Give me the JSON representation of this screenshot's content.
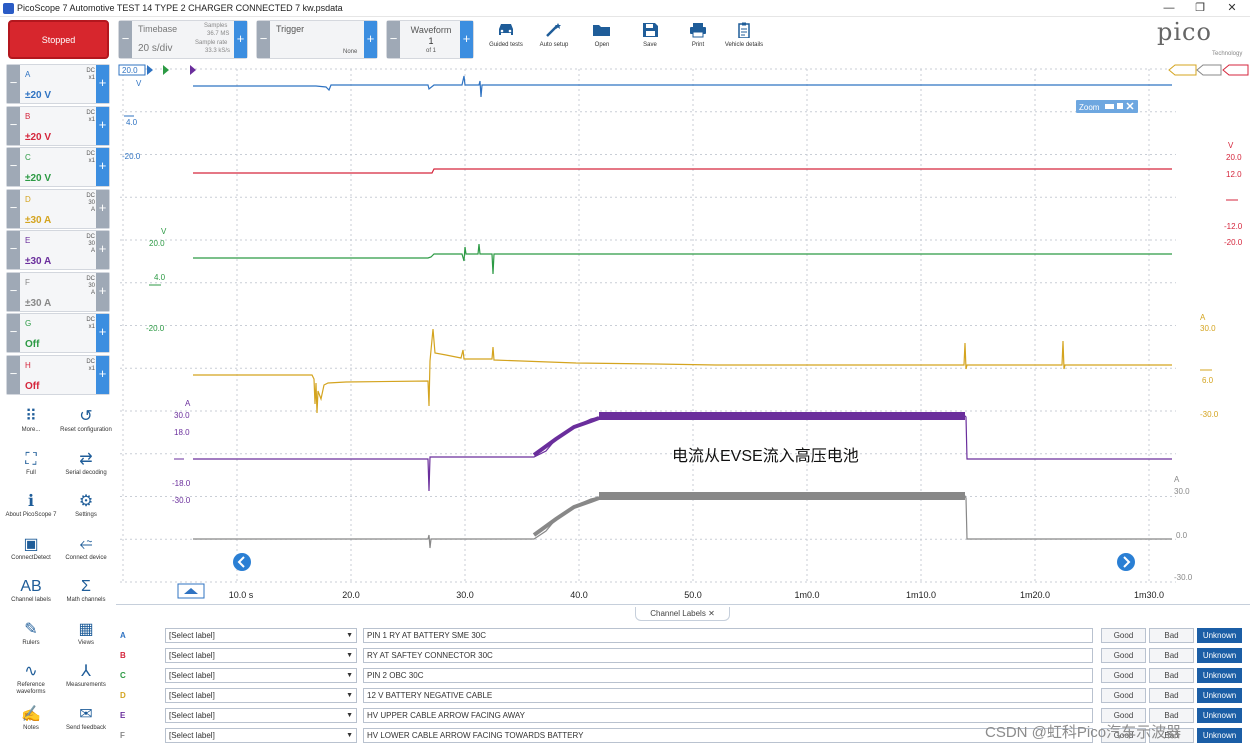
{
  "window": {
    "title": "PicoScope 7 Automotive TEST 14 TYPE 2 CHARGER CONNECTED 7 kw.psdata",
    "minimize": "—",
    "maximize": "❐",
    "close": "✕"
  },
  "toolbar": {
    "run_state": "Stopped",
    "timebase": {
      "label": "Timebase",
      "value": "20 s/div",
      "samples_label": "Samples",
      "samples_value": "36.7 MS",
      "rate_label": "Sample rate",
      "rate_value": "33.3 kS/s"
    },
    "trigger": {
      "label": "Trigger",
      "mode": "None"
    },
    "waveform": {
      "label": "Waveform",
      "value": "1",
      "of": "of 1"
    },
    "items": [
      {
        "label": "Guided tests",
        "icon": "car-icon"
      },
      {
        "label": "Auto setup",
        "icon": "magic-wand-icon"
      },
      {
        "label": "Open",
        "icon": "folder-icon"
      },
      {
        "label": "Save",
        "icon": "save-icon"
      },
      {
        "label": "Print",
        "icon": "printer-icon"
      },
      {
        "label": "Vehicle details",
        "icon": "clipboard-icon"
      }
    ],
    "logo": "pico",
    "logo_sub": "Technology"
  },
  "channels": [
    {
      "letter": "A",
      "coupling": "DC",
      "probe": "x1",
      "range": "±20 V",
      "color": "#2f73c2"
    },
    {
      "letter": "B",
      "coupling": "DC",
      "probe": "x1",
      "range": "±20 V",
      "color": "#d5263c"
    },
    {
      "letter": "C",
      "coupling": "DC",
      "probe": "x1",
      "range": "±20 V",
      "color": "#2c9a44"
    },
    {
      "letter": "D",
      "coupling": "DC",
      "probe": "30 A",
      "range": "±30 A",
      "color": "#d4a41f"
    },
    {
      "letter": "E",
      "coupling": "DC",
      "probe": "30 A",
      "range": "±30 A",
      "color": "#6a2e9c"
    },
    {
      "letter": "F",
      "coupling": "DC",
      "probe": "30 A",
      "range": "±30 A",
      "color": "#888888"
    },
    {
      "letter": "G",
      "coupling": "DC",
      "probe": "x1",
      "range": "Off",
      "color": "#2c9a44"
    },
    {
      "letter": "H",
      "coupling": "DC",
      "probe": "x1",
      "range": "Off",
      "color": "#d5263c"
    }
  ],
  "sidebar_tools": [
    {
      "label": "More...",
      "icon": "grid-dots-icon"
    },
    {
      "label": "Reset configuration",
      "icon": "reset-icon"
    },
    {
      "label": "Full",
      "icon": "fullscreen-icon"
    },
    {
      "label": "Serial decoding",
      "icon": "serial-decoding-icon"
    },
    {
      "label": "About PicoScope 7",
      "icon": "info-icon"
    },
    {
      "label": "Settings",
      "icon": "gear-icon"
    },
    {
      "label": "ConnectDetect",
      "icon": "connect-detect-icon"
    },
    {
      "label": "Connect device",
      "icon": "usb-icon"
    },
    {
      "label": "Channel labels",
      "icon": "channel-labels-icon"
    },
    {
      "label": "Math channels",
      "icon": "sigma-icon"
    },
    {
      "label": "Rulers",
      "icon": "ruler-icon"
    },
    {
      "label": "Views",
      "icon": "views-grid-icon"
    },
    {
      "label": "Reference waveforms",
      "icon": "reference-waveform-icon"
    },
    {
      "label": "Measurements",
      "icon": "measurement-icon"
    },
    {
      "label": "Notes",
      "icon": "notes-icon"
    },
    {
      "label": "Send feedback",
      "icon": "feedback-icon"
    }
  ],
  "scope": {
    "top_marker": "20.0",
    "zoom_label": "Zoom",
    "annotation": "电流从EVSE流入高压电池",
    "time_axis": [
      "10.0 s",
      "20.0",
      "30.0",
      "40.0",
      "50.0",
      "1m0.0",
      "1m10.0",
      "1m20.0",
      "1m30.0"
    ],
    "left_labels": {
      "a": {
        "unit": "V",
        "v1": "4.0",
        "v2": "-20.0"
      },
      "c": {
        "unit": "V",
        "v1": "20.0",
        "v2": "4.0",
        "v3": "-20.0"
      },
      "e": {
        "unit": "A",
        "v1": "30.0",
        "v2": "18.0",
        "v3": "-18.0",
        "v4": "-30.0"
      }
    },
    "right_labels": {
      "b": {
        "unit": "V",
        "v1": "20.0",
        "v2": "12.0",
        "v3": "-12.0",
        "v4": "-20.0"
      },
      "d": {
        "unit": "A",
        "v1": "30.0",
        "v2": "6.0",
        "v3": "-30.0"
      },
      "f": {
        "unit": "A",
        "v1": "30.0",
        "v2": "0.0",
        "v3": "-30.0"
      }
    }
  },
  "channel_labels_panel": {
    "tab": "Channel Labels",
    "rows": [
      {
        "letter": "A",
        "select": "[Select label]",
        "description": "PIN 1 RY AT BATTERY SME 30C"
      },
      {
        "letter": "B",
        "select": "[Select label]",
        "description": "RY AT SAFTEY CONNECTOR 30C"
      },
      {
        "letter": "C",
        "select": "[Select label]",
        "description": "PIN 2 OBC 30C"
      },
      {
        "letter": "D",
        "select": "[Select label]",
        "description": "12 V BATTERY NEGATIVE CABLE"
      },
      {
        "letter": "E",
        "select": "[Select label]",
        "description": "HV UPPER CABLE ARROW FACING AWAY"
      },
      {
        "letter": "F",
        "select": "[Select label]",
        "description": "HV LOWER CABLE ARROW FACING TOWARDS BATTERY"
      }
    ],
    "good": "Good",
    "bad": "Bad",
    "unknown": "Unknown"
  },
  "watermark": "CSDN @虹科Pico汽车示波器"
}
